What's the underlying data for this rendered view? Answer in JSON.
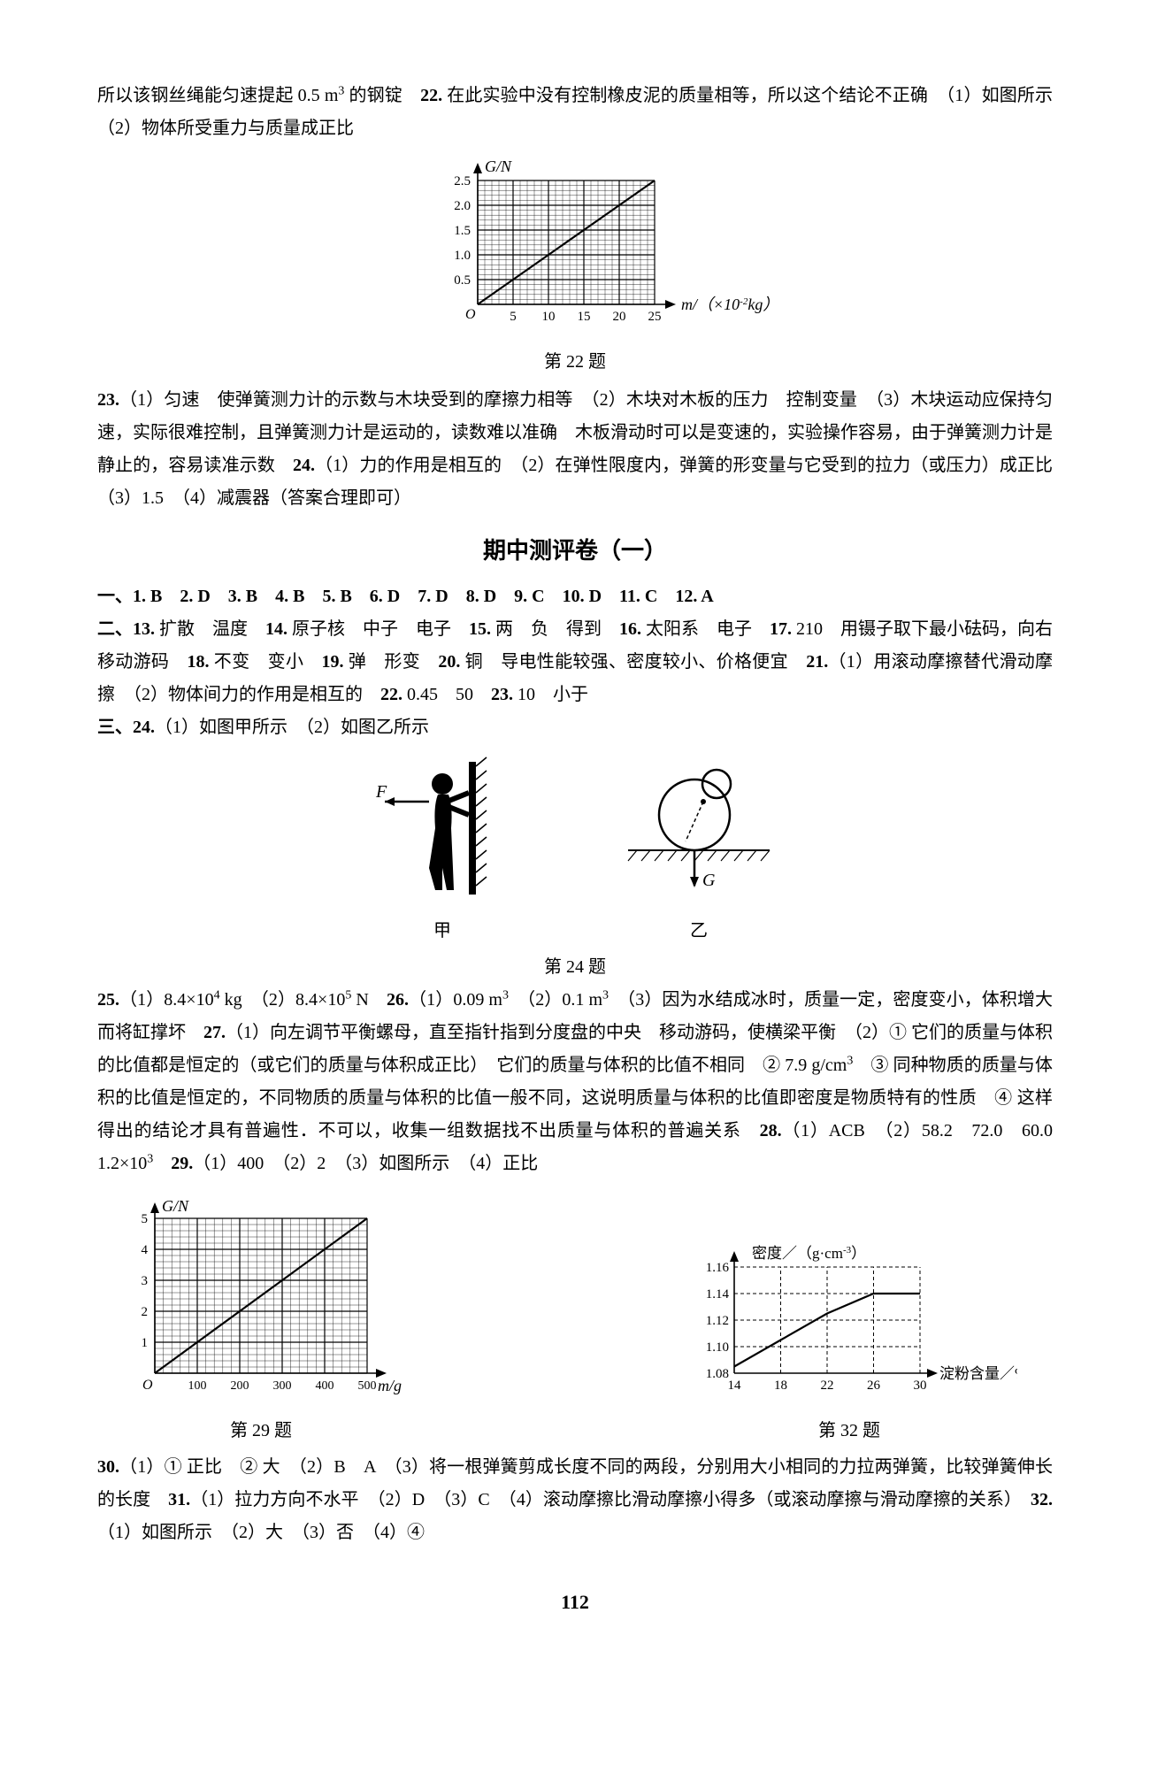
{
  "top_para": {
    "line1_a": "所以该钢丝绳能匀速提起 0.5 m",
    "line1_sup": "3",
    "line1_b": " 的钢锭　",
    "q22_num": "22.",
    "q22_text": " 在此实验中没有控制橡皮泥的质量相等，所以这个结论不正确　（1）如图所示　（2）物体所受重力与质量成正比"
  },
  "chart22": {
    "ylabel": "G/N",
    "xlabel_a": "m/（×10",
    "xlabel_sup": "-2",
    "xlabel_b": "kg）",
    "origin": "O",
    "yticks": [
      "0.5",
      "1.0",
      "1.5",
      "2.0",
      "2.5"
    ],
    "xticks": [
      "5",
      "10",
      "15",
      "20",
      "25"
    ],
    "caption": "第 22 题",
    "grid_color": "#000000",
    "line_color": "#000000",
    "bg": "#ffffff",
    "y_max": 2.5,
    "x_max": 25,
    "data_points": [
      [
        0,
        0
      ],
      [
        25,
        2.5
      ]
    ]
  },
  "mid_para": {
    "q23_num": "23.",
    "q23_text": "（1）匀速　使弹簧测力计的示数与木块受到的摩擦力相等　（2）木块对木板的压力　控制变量　（3）木块运动应保持匀速，实际很难控制，且弹簧测力计是运动的，读数难以准确　木板滑动时可以是变速的，实验操作容易，由于弹簧测力计是静止的，容易读准示数　",
    "q24_num": "24.",
    "q24_text": "（1）力的作用是相互的　（2）在弹性限度内，弹簧的形变量与它受到的拉力（或压力）成正比　（3）1.5　（4）减震器（答案合理即可）"
  },
  "section_title": "期中测评卷（一）",
  "sec1": {
    "prefix": "一、",
    "items": "1. B　2. D　3. B　4. B　5. B　6. D　7. D　8. D　9. C　10. D　11. C　12. A"
  },
  "sec2": {
    "prefix": "二、",
    "q13": "13. 扩散　温度　",
    "q14": "14. 原子核　中子　电子　",
    "q15": "15. 两　负　得到　",
    "q16": "16. 太阳系　电子　",
    "q17": "17. 210　用镊子取下最小砝码，向右移动游码　",
    "q18": "18. 不变　变小　",
    "q19": "19. 弹　形变　",
    "q20": "20. 铜　导电性能较强、密度较小、价格便宜　",
    "q21": "21.（1）用滚动摩擦替代滑动摩擦　（2）物体间力的作用是相互的　",
    "q22": "22. 0.45　50　",
    "q23": "23. 10　小于"
  },
  "sec3": {
    "prefix": "三、",
    "q24": "24.（1）如图甲所示　（2）如图乙所示"
  },
  "fig24": {
    "label_F": "F",
    "label_G": "G",
    "label_jia": "甲",
    "label_yi": "乙",
    "caption": "第 24 题"
  },
  "sec3b": {
    "q25_num": "25.",
    "q25_a": "（1）8.4×10",
    "q25_sup1": "4",
    "q25_b": " kg　（2）8.4×10",
    "q25_sup2": "5",
    "q25_c": " N　",
    "q26_num": "26.",
    "q26_a": "（1）0.09 m",
    "q26_sup1": "3",
    "q26_b": "　（2）0.1 m",
    "q26_sup2": "3",
    "q26_c": "　（3）因为水结成冰时，质量一定，密度变小，体积增大而将缸撑坏　",
    "q27_num": "27.",
    "q27_a": "（1）向左调节平衡螺母，直至指针指到分度盘的中央　移动游码，使横梁平衡　（2）① 它们的质量与体积的比值都是恒定的（或它们的质量与体积成正比）　它们的质量与体积的比值不相同　② 7.9 g/cm",
    "q27_sup": "3",
    "q27_b": "　③ 同种物质的质量与体积的比值是恒定的，不同物质的质量与体积的比值一般不同，这说明质量与体积的比值即密度是物质特有的性质　④ 这样得出的结论才具有普遍性．不可以，收集一组数据找不出质量与体积的普遍关系　",
    "q28_num": "28.",
    "q28_a": "（1）ACB　（2）58.2　72.0　60.0　1.2×10",
    "q28_sup": "3",
    "q28_b": "　",
    "q29_num": "29.",
    "q29_text": "（1）400　（2）2　（3）如图所示　（4）正比"
  },
  "chart29": {
    "ylabel": "G/N",
    "xlabel": "m/g",
    "origin": "O",
    "yticks": [
      "1",
      "2",
      "3",
      "4",
      "5"
    ],
    "xticks": [
      "100",
      "200",
      "300",
      "400",
      "500"
    ],
    "caption": "第 29 题",
    "grid_color": "#000000",
    "line_color": "#000000",
    "y_max": 5,
    "x_max": 500,
    "data_points": [
      [
        0,
        0
      ],
      [
        500,
        5
      ]
    ]
  },
  "chart32": {
    "ylabel_a": "密度／（g·cm",
    "ylabel_sup": "-3",
    "ylabel_b": "）",
    "xlabel": "淀粉含量／%",
    "yticks": [
      "1.08",
      "1.10",
      "1.12",
      "1.14",
      "1.16"
    ],
    "xticks": [
      "14",
      "18",
      "22",
      "26",
      "30"
    ],
    "caption": "第 32 题",
    "line_color": "#000000",
    "grid_color": "#000000",
    "data_points": [
      [
        14,
        1.085
      ],
      [
        18,
        1.105
      ],
      [
        22,
        1.125
      ],
      [
        26,
        1.14
      ],
      [
        30,
        1.14
      ]
    ]
  },
  "bottom_para": {
    "q30_num": "30.",
    "q30_text": "（1）① 正比　② 大　（2）B　A　（3）将一根弹簧剪成长度不同的两段，分别用大小相同的力拉两弹簧，比较弹簧伸长的长度　",
    "q31_num": "31.",
    "q31_text": "（1）拉力方向不水平　（2）D　（3）C　（4）滚动摩擦比滑动摩擦小得多（或滚动摩擦与滑动摩擦的关系）　",
    "q32_num": "32.",
    "q32_text": "（1）如图所示　（2）大　（3）否　（4）④"
  },
  "page_number": "112"
}
